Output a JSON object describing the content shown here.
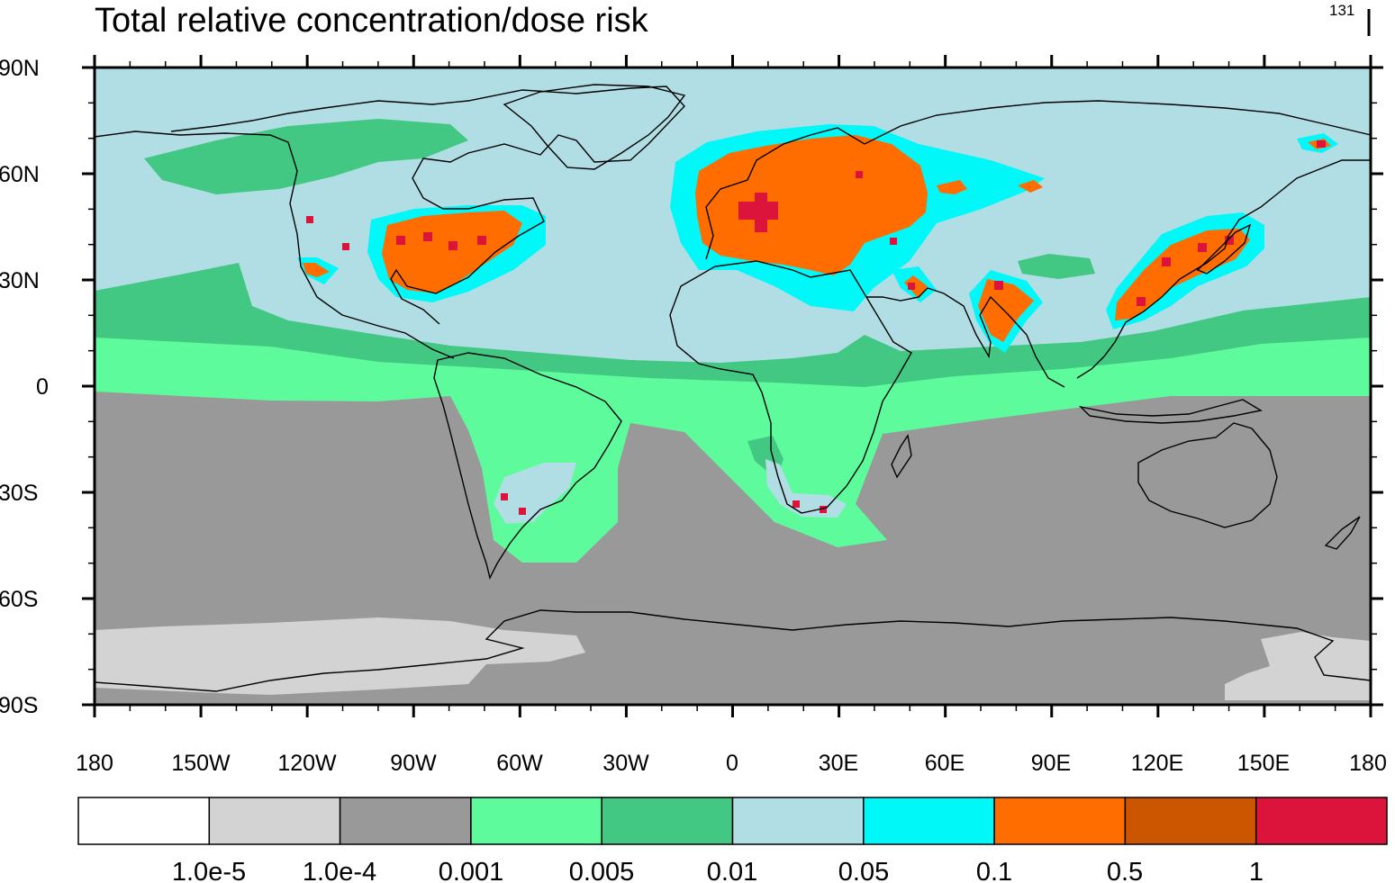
{
  "title": "Total relative concentration/dose risk",
  "corner_label": "131",
  "colors": {
    "deep_south": "#d3d3d3",
    "south": "#999999",
    "tropics": "#5dfb9b",
    "subtropics": "#42c882",
    "background_north": "#b0dee4",
    "halo": "#00f8f8",
    "high": "#ff6c00",
    "very_high": "#cc5500",
    "peak": "#dc143c",
    "coast": "#000000"
  },
  "axes": {
    "lat_ticks": [
      "90N",
      "60N",
      "30N",
      "0",
      "30S",
      "60S",
      "90S"
    ],
    "lon_ticks": [
      "180",
      "150W",
      "120W",
      "90W",
      "60W",
      "30W",
      "0",
      "30E",
      "60E",
      "90E",
      "120E",
      "150E",
      "180"
    ]
  },
  "legend": {
    "colors": [
      "#ffffff",
      "#d3d3d3",
      "#999999",
      "#5dfb9b",
      "#42c882",
      "#b0dee4",
      "#00f8f8",
      "#ff6c00",
      "#cc5500",
      "#dc143c"
    ],
    "labels": [
      "1.0e-5",
      "1.0e-4",
      "0.001",
      "0.005",
      "0.01",
      "0.05",
      "0.1",
      "0.5",
      "1"
    ]
  },
  "regions": [
    {
      "name": "North America",
      "level": "high"
    },
    {
      "name": "Europe",
      "level": "high"
    },
    {
      "name": "East Asia",
      "level": "high"
    },
    {
      "name": "South Asia",
      "level": "high"
    },
    {
      "name": "Southern South America",
      "level": "background_north"
    },
    {
      "name": "Southern Africa",
      "level": "background_north"
    },
    {
      "name": "Antarctic margins",
      "level": "deep_south"
    }
  ]
}
